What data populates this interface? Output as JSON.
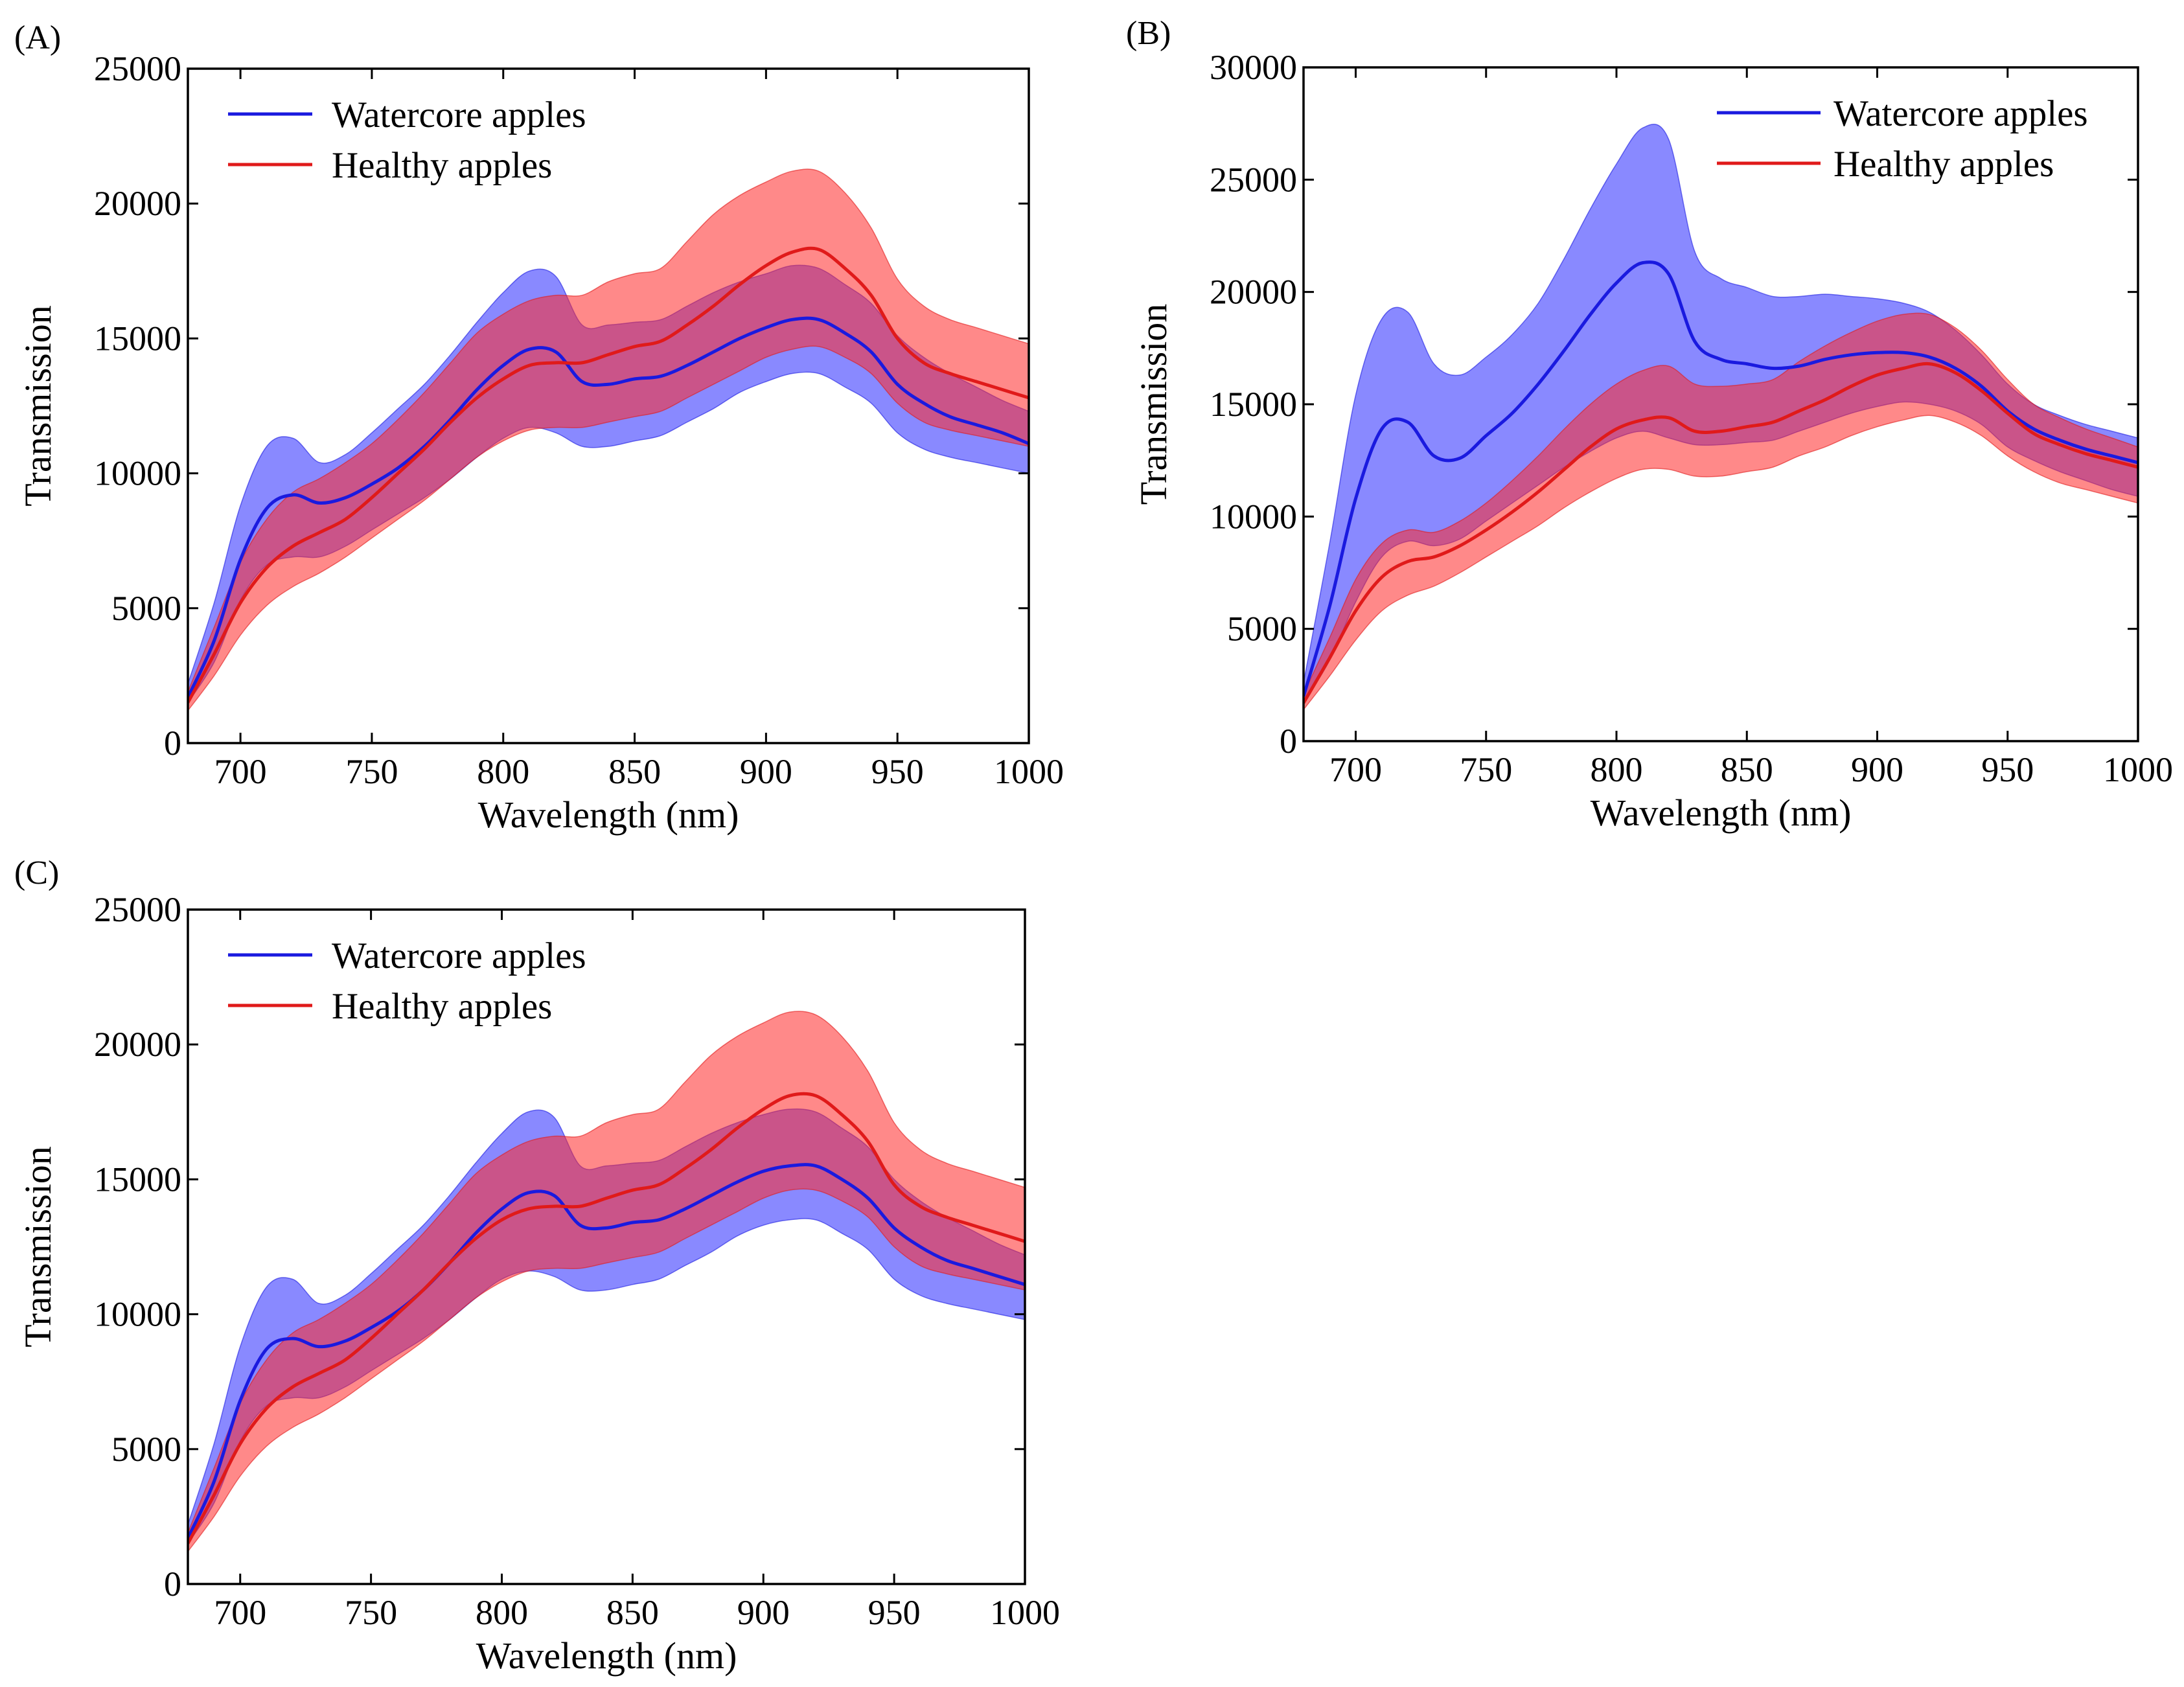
{
  "colors": {
    "watercore": "#1a1adf",
    "healthy": "#e01a1a",
    "watercore_band": "rgba(40,40,255,0.55)",
    "healthy_band": "rgba(255,40,40,0.55)"
  },
  "chart_data": [
    {
      "panel": "(A)",
      "type": "area",
      "xlabel": "Wavelength (nm)",
      "ylabel": "Transmission",
      "xlim": [
        680,
        1000
      ],
      "ylim": [
        0,
        25000
      ],
      "xticks": [
        700,
        750,
        800,
        850,
        900,
        950,
        1000
      ],
      "yticks": [
        0,
        5000,
        10000,
        15000,
        20000,
        25000
      ],
      "legend_position": "top-left",
      "grid": false,
      "x": [
        680,
        690,
        700,
        710,
        720,
        730,
        740,
        750,
        760,
        770,
        780,
        790,
        800,
        810,
        820,
        830,
        840,
        850,
        860,
        870,
        880,
        890,
        900,
        910,
        920,
        930,
        940,
        950,
        960,
        970,
        980,
        990,
        1000
      ],
      "series": [
        {
          "name": "Watercore apples",
          "color": "watercore",
          "mean": [
            1700,
            3800,
            6800,
            8700,
            9200,
            8900,
            9100,
            9600,
            10200,
            11000,
            12000,
            13100,
            14000,
            14600,
            14500,
            13400,
            13300,
            13500,
            13600,
            14000,
            14500,
            15000,
            15400,
            15700,
            15700,
            15200,
            14500,
            13300,
            12600,
            12100,
            11800,
            11500,
            11100
          ],
          "upper": [
            2200,
            5200,
            8800,
            11000,
            11300,
            10400,
            10700,
            11500,
            12400,
            13300,
            14400,
            15600,
            16700,
            17500,
            17300,
            15500,
            15500,
            15600,
            15700,
            16200,
            16700,
            17100,
            17400,
            17700,
            17600,
            17000,
            16300,
            15100,
            14300,
            13700,
            13200,
            12700,
            12300
          ],
          "lower": [
            1500,
            3000,
            5300,
            6600,
            6900,
            6900,
            7300,
            7900,
            8500,
            9100,
            9800,
            10600,
            11300,
            11700,
            11500,
            11000,
            11000,
            11200,
            11400,
            11900,
            12400,
            13000,
            13400,
            13700,
            13700,
            13200,
            12600,
            11500,
            10900,
            10600,
            10400,
            10200,
            10000
          ]
        },
        {
          "name": "Healthy apples",
          "color": "healthy",
          "mean": [
            1500,
            3300,
            5200,
            6500,
            7300,
            7800,
            8300,
            9100,
            10000,
            10900,
            11900,
            12800,
            13500,
            14000,
            14100,
            14100,
            14400,
            14700,
            14900,
            15500,
            16200,
            17000,
            17700,
            18200,
            18300,
            17600,
            16600,
            15000,
            14100,
            13700,
            13400,
            13100,
            12800
          ],
          "upper": [
            1900,
            4300,
            6700,
            8300,
            9300,
            9800,
            10400,
            11100,
            12000,
            13000,
            14100,
            15200,
            15900,
            16400,
            16600,
            16600,
            17100,
            17400,
            17600,
            18600,
            19600,
            20300,
            20800,
            21200,
            21200,
            20400,
            19100,
            17200,
            16200,
            15700,
            15400,
            15100,
            14800
          ],
          "lower": [
            1200,
            2500,
            4000,
            5100,
            5800,
            6300,
            6900,
            7600,
            8300,
            9000,
            9800,
            10600,
            11200,
            11600,
            11700,
            11700,
            11900,
            12100,
            12300,
            12800,
            13300,
            13800,
            14300,
            14600,
            14700,
            14300,
            13700,
            12600,
            11900,
            11600,
            11400,
            11200,
            11000
          ]
        }
      ]
    },
    {
      "panel": "(B)",
      "type": "area",
      "xlabel": "Wavelength (nm)",
      "ylabel": "Transmission",
      "xlim": [
        680,
        1000
      ],
      "ylim": [
        0,
        30000
      ],
      "xticks": [
        700,
        750,
        800,
        850,
        900,
        950,
        1000
      ],
      "yticks": [
        0,
        5000,
        10000,
        15000,
        20000,
        25000,
        30000
      ],
      "legend_position": "top-right",
      "grid": false,
      "x": [
        680,
        690,
        700,
        710,
        720,
        730,
        740,
        750,
        760,
        770,
        780,
        790,
        800,
        810,
        820,
        830,
        840,
        850,
        860,
        870,
        880,
        890,
        900,
        910,
        920,
        930,
        940,
        950,
        960,
        970,
        980,
        990,
        1000
      ],
      "series": [
        {
          "name": "Watercore apples",
          "color": "watercore",
          "mean": [
            2000,
            6000,
            10800,
            13900,
            14200,
            12700,
            12600,
            13600,
            14600,
            15900,
            17400,
            19000,
            20400,
            21300,
            20800,
            17800,
            17000,
            16800,
            16600,
            16700,
            17000,
            17200,
            17300,
            17300,
            17100,
            16600,
            15800,
            14700,
            13900,
            13400,
            13000,
            12700,
            12400
          ],
          "upper": [
            2600,
            8800,
            15400,
            18800,
            19100,
            16800,
            16300,
            17100,
            18100,
            19500,
            21500,
            23700,
            25700,
            27300,
            26800,
            21800,
            20600,
            20200,
            19800,
            19800,
            19900,
            19800,
            19700,
            19500,
            19100,
            18300,
            17200,
            15900,
            15000,
            14500,
            14100,
            13800,
            13500
          ],
          "lower": [
            1700,
            3600,
            6200,
            8200,
            8900,
            8700,
            9000,
            9800,
            10600,
            11400,
            12200,
            12900,
            13500,
            13800,
            13500,
            13200,
            13200,
            13300,
            13400,
            13800,
            14200,
            14600,
            14900,
            15100,
            15000,
            14700,
            14100,
            13100,
            12500,
            12000,
            11600,
            11200,
            10900
          ]
        },
        {
          "name": "Healthy apples",
          "color": "healthy",
          "mean": [
            1700,
            3700,
            5800,
            7300,
            8000,
            8200,
            8700,
            9400,
            10200,
            11100,
            12100,
            13100,
            13900,
            14300,
            14400,
            13800,
            13800,
            14000,
            14200,
            14700,
            15200,
            15800,
            16300,
            16600,
            16800,
            16400,
            15600,
            14600,
            13700,
            13200,
            12800,
            12500,
            12200
          ],
          "upper": [
            2100,
            4600,
            7200,
            8800,
            9400,
            9300,
            9800,
            10600,
            11600,
            12700,
            13900,
            15000,
            15900,
            16500,
            16700,
            15900,
            15800,
            15900,
            16100,
            16900,
            17600,
            18200,
            18700,
            19000,
            19000,
            18400,
            17400,
            16100,
            15000,
            14400,
            13900,
            13500,
            13100
          ],
          "lower": [
            1400,
            2900,
            4500,
            5800,
            6500,
            6900,
            7500,
            8200,
            8900,
            9600,
            10400,
            11100,
            11700,
            12100,
            12100,
            11800,
            11800,
            12000,
            12200,
            12700,
            13100,
            13600,
            14000,
            14300,
            14500,
            14200,
            13600,
            12700,
            12000,
            11500,
            11200,
            10900,
            10600
          ]
        }
      ]
    },
    {
      "panel": "(C)",
      "type": "area",
      "xlabel": "Wavelength (nm)",
      "ylabel": "Transmission",
      "xlim": [
        680,
        1000
      ],
      "ylim": [
        0,
        25000
      ],
      "xticks": [
        700,
        750,
        800,
        850,
        900,
        950,
        1000
      ],
      "yticks": [
        0,
        5000,
        10000,
        15000,
        20000,
        25000
      ],
      "legend_position": "top-left",
      "grid": false,
      "x": [
        680,
        690,
        700,
        710,
        720,
        730,
        740,
        750,
        760,
        770,
        780,
        790,
        800,
        810,
        820,
        830,
        840,
        850,
        860,
        870,
        880,
        890,
        900,
        910,
        920,
        930,
        940,
        950,
        960,
        970,
        980,
        990,
        1000
      ],
      "series": [
        {
          "name": "Watercore apples",
          "color": "watercore",
          "mean": [
            1700,
            3800,
            6800,
            8700,
            9100,
            8800,
            9000,
            9500,
            10100,
            10900,
            11900,
            13000,
            13900,
            14500,
            14400,
            13300,
            13200,
            13400,
            13500,
            13900,
            14400,
            14900,
            15300,
            15500,
            15500,
            15000,
            14300,
            13200,
            12500,
            12000,
            11700,
            11400,
            11100
          ],
          "upper": [
            2200,
            5200,
            8800,
            11000,
            11300,
            10400,
            10700,
            11500,
            12400,
            13300,
            14400,
            15600,
            16700,
            17500,
            17300,
            15500,
            15500,
            15600,
            15700,
            16200,
            16700,
            17100,
            17400,
            17600,
            17500,
            16900,
            16200,
            15000,
            14200,
            13600,
            13100,
            12600,
            12200
          ],
          "lower": [
            1500,
            3000,
            5300,
            6600,
            6900,
            6900,
            7300,
            7900,
            8500,
            9100,
            9800,
            10600,
            11300,
            11600,
            11400,
            10900,
            10900,
            11100,
            11300,
            11800,
            12300,
            12900,
            13300,
            13500,
            13500,
            13000,
            12400,
            11300,
            10700,
            10400,
            10200,
            10000,
            9800
          ]
        },
        {
          "name": "Healthy apples",
          "color": "healthy",
          "mean": [
            1500,
            3300,
            5200,
            6500,
            7300,
            7800,
            8300,
            9100,
            10000,
            10900,
            11900,
            12800,
            13500,
            13900,
            14000,
            14000,
            14300,
            14600,
            14800,
            15400,
            16100,
            16900,
            17600,
            18100,
            18100,
            17400,
            16400,
            14800,
            14000,
            13600,
            13300,
            13000,
            12700
          ],
          "upper": [
            1900,
            4300,
            6700,
            8300,
            9300,
            9800,
            10400,
            11100,
            12000,
            13000,
            14100,
            15200,
            15900,
            16400,
            16600,
            16600,
            17100,
            17400,
            17600,
            18600,
            19600,
            20300,
            20800,
            21200,
            21100,
            20300,
            19000,
            17100,
            16100,
            15600,
            15300,
            15000,
            14700
          ],
          "lower": [
            1200,
            2500,
            4000,
            5100,
            5800,
            6300,
            6900,
            7600,
            8300,
            9000,
            9800,
            10600,
            11200,
            11600,
            11700,
            11700,
            11900,
            12100,
            12300,
            12800,
            13300,
            13800,
            14300,
            14600,
            14600,
            14200,
            13600,
            12500,
            11800,
            11500,
            11300,
            11100,
            10900
          ]
        }
      ]
    }
  ]
}
